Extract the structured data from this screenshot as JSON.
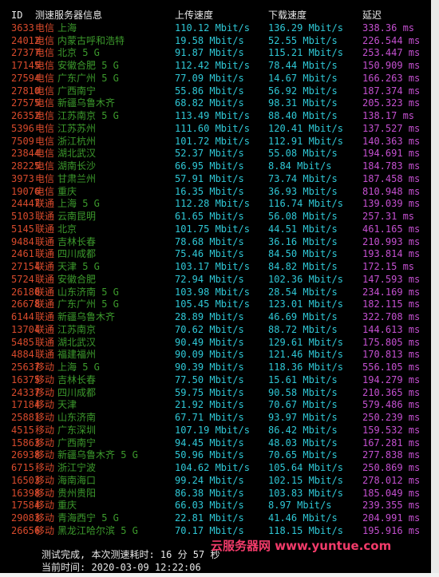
{
  "colors": {
    "background": "#000000",
    "id": "#d84a2c",
    "isp": "#d84a2c",
    "node": "#3c9a2c",
    "speed": "#2fc8d6",
    "latency": "#c450d0",
    "header": "#e8e8e8",
    "watermark": "#f23b6a"
  },
  "header": {
    "id": "ID",
    "node": "测速服务器信息",
    "upload": "上传速度",
    "download": "下载速度",
    "latency": "延迟"
  },
  "rows": [
    {
      "id": "3633",
      "isp": "电信",
      "node": "上海",
      "up": "110.12 Mbit/s",
      "down": "136.29 Mbit/s",
      "lat": "338.36 ms"
    },
    {
      "id": "24012",
      "isp": "电信",
      "node": "内蒙古呼和浩特",
      "up": "19.58 Mbit/s",
      "down": "52.55 Mbit/s",
      "lat": "226.544 ms"
    },
    {
      "id": "27377",
      "isp": "电信",
      "node": "北京 5 G",
      "up": "91.87 Mbit/s",
      "down": "115.21 Mbit/s",
      "lat": "253.447 ms"
    },
    {
      "id": "17145",
      "isp": "电信",
      "node": "安徽合肥 5 G",
      "up": "112.42 Mbit/s",
      "down": "78.44 Mbit/s",
      "lat": "150.909 ms"
    },
    {
      "id": "27594",
      "isp": "电信",
      "node": "广东广州 5 G",
      "up": "77.09 Mbit/s",
      "down": "14.67 Mbit/s",
      "lat": "166.263 ms"
    },
    {
      "id": "27810",
      "isp": "电信",
      "node": "广西南宁",
      "up": "55.86 Mbit/s",
      "down": "56.92 Mbit/s",
      "lat": "187.374 ms"
    },
    {
      "id": "27575",
      "isp": "电信",
      "node": "新疆乌鲁木齐",
      "up": "68.82 Mbit/s",
      "down": "98.31 Mbit/s",
      "lat": "205.323 ms"
    },
    {
      "id": "26352",
      "isp": "电信",
      "node": "江苏南京 5 G",
      "up": "113.49 Mbit/s",
      "down": "88.40 Mbit/s",
      "lat": "138.17 ms"
    },
    {
      "id": "5396",
      "isp": "电信",
      "node": "江苏苏州",
      "up": "111.60 Mbit/s",
      "down": "120.41 Mbit/s",
      "lat": "137.527 ms"
    },
    {
      "id": "7509",
      "isp": "电信",
      "node": "浙江杭州",
      "up": "101.72 Mbit/s",
      "down": "112.91 Mbit/s",
      "lat": "140.363 ms"
    },
    {
      "id": "23844",
      "isp": "电信",
      "node": "湖北武汉",
      "up": "52.37 Mbit/s",
      "down": "55.08 Mbit/s",
      "lat": "194.691 ms"
    },
    {
      "id": "28225",
      "isp": "电信",
      "node": "湖南长沙",
      "up": "66.95 Mbit/s",
      "down": "8.84 Mbit/s",
      "lat": "184.783 ms"
    },
    {
      "id": "3973",
      "isp": "电信",
      "node": "甘肃兰州",
      "up": "57.91 Mbit/s",
      "down": "73.74 Mbit/s",
      "lat": "187.458 ms"
    },
    {
      "id": "19076",
      "isp": "电信",
      "node": "重庆",
      "up": "16.35 Mbit/s",
      "down": "36.93 Mbit/s",
      "lat": "810.948 ms"
    },
    {
      "id": "24447",
      "isp": "联通",
      "node": "上海 5 G",
      "up": "112.28 Mbit/s",
      "down": "116.74 Mbit/s",
      "lat": "139.039 ms"
    },
    {
      "id": "5103",
      "isp": "联通",
      "node": "云南昆明",
      "up": "61.65 Mbit/s",
      "down": "56.08 Mbit/s",
      "lat": "257.31 ms"
    },
    {
      "id": "5145",
      "isp": "联通",
      "node": "北京",
      "up": "101.75 Mbit/s",
      "down": "44.51 Mbit/s",
      "lat": "461.165 ms"
    },
    {
      "id": "9484",
      "isp": "联通",
      "node": "吉林长春",
      "up": "78.68 Mbit/s",
      "down": "36.16 Mbit/s",
      "lat": "210.993 ms"
    },
    {
      "id": "2461",
      "isp": "联通",
      "node": "四川成都",
      "up": "75.46 Mbit/s",
      "down": "84.50 Mbit/s",
      "lat": "193.814 ms"
    },
    {
      "id": "27154",
      "isp": "联通",
      "node": "天津 5 G",
      "up": "103.17 Mbit/s",
      "down": "84.82 Mbit/s",
      "lat": "172.15 ms"
    },
    {
      "id": "5724",
      "isp": "联通",
      "node": "安徽合肥",
      "up": "72.94 Mbit/s",
      "down": "102.36 Mbit/s",
      "lat": "147.593 ms"
    },
    {
      "id": "26180",
      "isp": "联通",
      "node": "山东济南 5 G",
      "up": "103.98 Mbit/s",
      "down": "28.54 Mbit/s",
      "lat": "234.169 ms"
    },
    {
      "id": "26678",
      "isp": "联通",
      "node": "广东广州 5 G",
      "up": "105.45 Mbit/s",
      "down": "123.01 Mbit/s",
      "lat": "182.115 ms"
    },
    {
      "id": "6144",
      "isp": "联通",
      "node": "新疆乌鲁木齐",
      "up": "28.89 Mbit/s",
      "down": "46.69 Mbit/s",
      "lat": "322.708 ms"
    },
    {
      "id": "13704",
      "isp": "联通",
      "node": "江苏南京",
      "up": "70.62 Mbit/s",
      "down": "88.72 Mbit/s",
      "lat": "144.613 ms"
    },
    {
      "id": "5485",
      "isp": "联通",
      "node": "湖北武汉",
      "up": "90.49 Mbit/s",
      "down": "129.61 Mbit/s",
      "lat": "175.805 ms"
    },
    {
      "id": "4884",
      "isp": "联通",
      "node": "福建福州",
      "up": "90.09 Mbit/s",
      "down": "121.46 Mbit/s",
      "lat": "170.813 ms"
    },
    {
      "id": "25637",
      "isp": "移动",
      "node": "上海 5 G",
      "up": "90.39 Mbit/s",
      "down": "118.36 Mbit/s",
      "lat": "556.105 ms"
    },
    {
      "id": "16375",
      "isp": "移动",
      "node": "吉林长春",
      "up": "77.50 Mbit/s",
      "down": "15.61 Mbit/s",
      "lat": "194.279 ms"
    },
    {
      "id": "24337",
      "isp": "移动",
      "node": "四川成都",
      "up": "59.75 Mbit/s",
      "down": "90.58 Mbit/s",
      "lat": "210.365 ms"
    },
    {
      "id": "17184",
      "isp": "移动",
      "node": "天津",
      "up": "21.92 Mbit/s",
      "down": "70.67 Mbit/s",
      "lat": "579.486 ms"
    },
    {
      "id": "25881",
      "isp": "移动",
      "node": "山东济南",
      "up": "67.71 Mbit/s",
      "down": "93.97 Mbit/s",
      "lat": "250.239 ms"
    },
    {
      "id": "4515",
      "isp": "移动",
      "node": "广东深圳",
      "up": "107.19 Mbit/s",
      "down": "86.42 Mbit/s",
      "lat": "159.532 ms"
    },
    {
      "id": "15863",
      "isp": "移动",
      "node": "广西南宁",
      "up": "94.45 Mbit/s",
      "down": "48.03 Mbit/s",
      "lat": "167.281 ms"
    },
    {
      "id": "26938",
      "isp": "移动",
      "node": "新疆乌鲁木齐 5 G",
      "up": "50.96 Mbit/s",
      "down": "70.65 Mbit/s",
      "lat": "277.838 ms"
    },
    {
      "id": "6715",
      "isp": "移动",
      "node": "浙江宁波",
      "up": "104.62 Mbit/s",
      "down": "105.64 Mbit/s",
      "lat": "250.869 ms"
    },
    {
      "id": "16503",
      "isp": "移动",
      "node": "海南海口",
      "up": "99.24 Mbit/s",
      "down": "102.15 Mbit/s",
      "lat": "278.012 ms"
    },
    {
      "id": "16398",
      "isp": "移动",
      "node": "贵州贵阳",
      "up": "86.38 Mbit/s",
      "down": "103.83 Mbit/s",
      "lat": "185.049 ms"
    },
    {
      "id": "17584",
      "isp": "移动",
      "node": "重庆",
      "up": "66.03 Mbit/s",
      "down": "8.97 Mbit/s",
      "lat": "239.355 ms"
    },
    {
      "id": "29083",
      "isp": "移动",
      "node": "青海西宁 5 G",
      "up": "22.81 Mbit/s",
      "down": "41.46 Mbit/s",
      "lat": "204.991 ms"
    },
    {
      "id": "26656",
      "isp": "移动",
      "node": "黑龙江哈尔滨 5 G",
      "up": "70.17 Mbit/s",
      "down": "118.15 Mbit/s",
      "lat": "195.916 ms"
    }
  ],
  "footer": {
    "completed": "测试完成, 本次测速耗时: 16 分 57 秒",
    "current_time": "当前时间: 2020-03-09 12:22:06"
  },
  "watermark": "云服务器网 www.yuntue.com"
}
